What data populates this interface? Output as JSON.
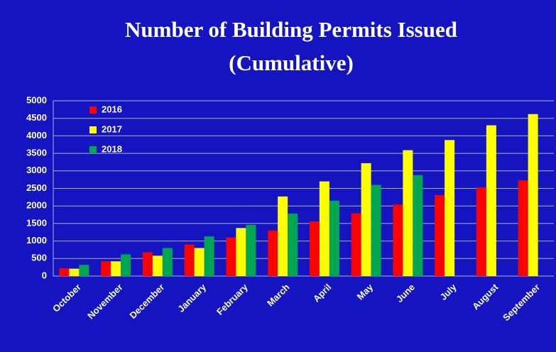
{
  "chart_data": {
    "type": "bar",
    "title": "Number of Building Permits Issued",
    "subtitle": "(Cumulative)",
    "categories": [
      "October",
      "November",
      "December",
      "January",
      "February",
      "March",
      "April",
      "May",
      "June",
      "July",
      "August",
      "September"
    ],
    "series": [
      {
        "name": "2016",
        "color": "#ff0000",
        "values": [
          220,
          420,
          680,
          900,
          1100,
          1300,
          1560,
          1790,
          2040,
          2310,
          2530,
          2730
        ]
      },
      {
        "name": "2017",
        "color": "#ffff00",
        "values": [
          210,
          420,
          580,
          800,
          1370,
          2270,
          2700,
          3220,
          3590,
          3880,
          4300,
          4620
        ]
      },
      {
        "name": "2018",
        "color": "#00a651",
        "values": [
          320,
          620,
          800,
          1130,
          1460,
          1780,
          2150,
          2600,
          2880,
          null,
          null,
          null
        ]
      }
    ],
    "ylim": [
      0,
      5000
    ],
    "yticks": [
      0,
      500,
      1000,
      1500,
      2000,
      2500,
      3000,
      3500,
      4000,
      4500,
      5000
    ],
    "grid": true,
    "legend": "top-left"
  }
}
